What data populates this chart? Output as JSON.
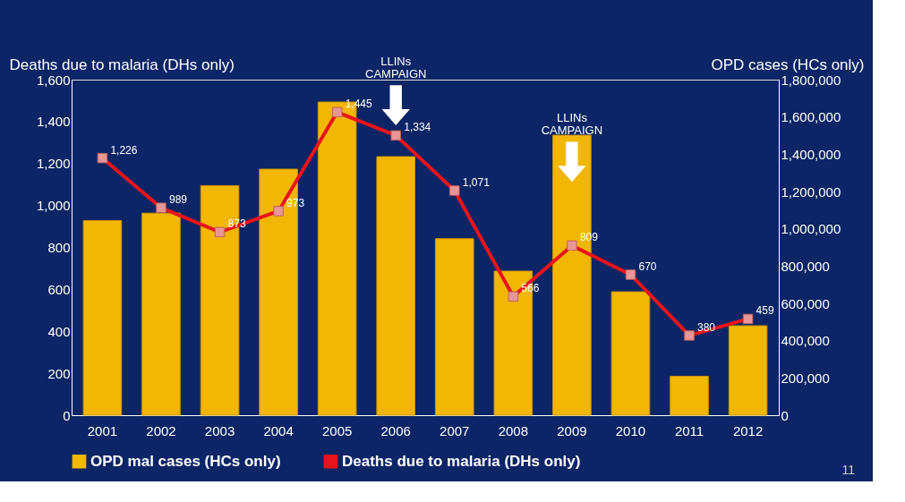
{
  "chart_data": {
    "type": "bar",
    "categories": [
      "2001",
      "2002",
      "2003",
      "2004",
      "2005",
      "2006",
      "2007",
      "2008",
      "2009",
      "2010",
      "2011",
      "2012"
    ],
    "ylabel": "Deaths due to malaria (DHs only)",
    "y2label": "OPD cases (HCs only)",
    "ylim": [
      0,
      1600
    ],
    "yticks": [
      {
        "value": 0,
        "label": "0"
      },
      {
        "value": 200,
        "label": "200"
      },
      {
        "value": 400,
        "label": "400"
      },
      {
        "value": 600,
        "label": "600"
      },
      {
        "value": 800,
        "label": "800"
      },
      {
        "value": 1000,
        "label": "1,000"
      },
      {
        "value": 1200,
        "label": "1,200"
      },
      {
        "value": 1400,
        "label": "1,400"
      },
      {
        "value": 1600,
        "label": "1,600"
      }
    ],
    "y2lim": [
      0,
      1800000
    ],
    "y2ticks": [
      {
        "value": 0,
        "label": "0"
      },
      {
        "value": 200000,
        "label": "200,000"
      },
      {
        "value": 400000,
        "label": "400,000"
      },
      {
        "value": 600000,
        "label": "600,000"
      },
      {
        "value": 800000,
        "label": "800,000"
      },
      {
        "value": 1000000,
        "label": "1,000,000"
      },
      {
        "value": 1200000,
        "label": "1,200,000"
      },
      {
        "value": 1400000,
        "label": "1,400,000"
      },
      {
        "value": 1600000,
        "label": "1,600,000"
      },
      {
        "value": 1800000,
        "label": "1,800,000"
      }
    ],
    "series": [
      {
        "name": "OPD mal  cases (HCs only)",
        "axis": "y2",
        "color": "#f2b705",
        "values": [
          1044000,
          1084000,
          1231000,
          1320000,
          1680000,
          1387000,
          947000,
          773000,
          1502000,
          662000,
          209000,
          480000
        ]
      },
      {
        "name": "Deaths due to malaria (DHs only)",
        "type": "line",
        "color": "#e8141c",
        "marker": "square",
        "values": [
          1226,
          989,
          873,
          973,
          1445,
          1334,
          1071,
          566,
          809,
          670,
          380,
          459
        ],
        "value_labels": [
          "1,226",
          "989",
          "873",
          "973",
          "1,445",
          "1,334",
          "1,071",
          "566",
          "809",
          "670",
          "380",
          "459"
        ]
      }
    ],
    "legend": "bottom",
    "grid": false,
    "annotations": [
      "LLINs CAMPAIGN",
      "LLINs CAMPAIGN",
      "11"
    ]
  }
}
